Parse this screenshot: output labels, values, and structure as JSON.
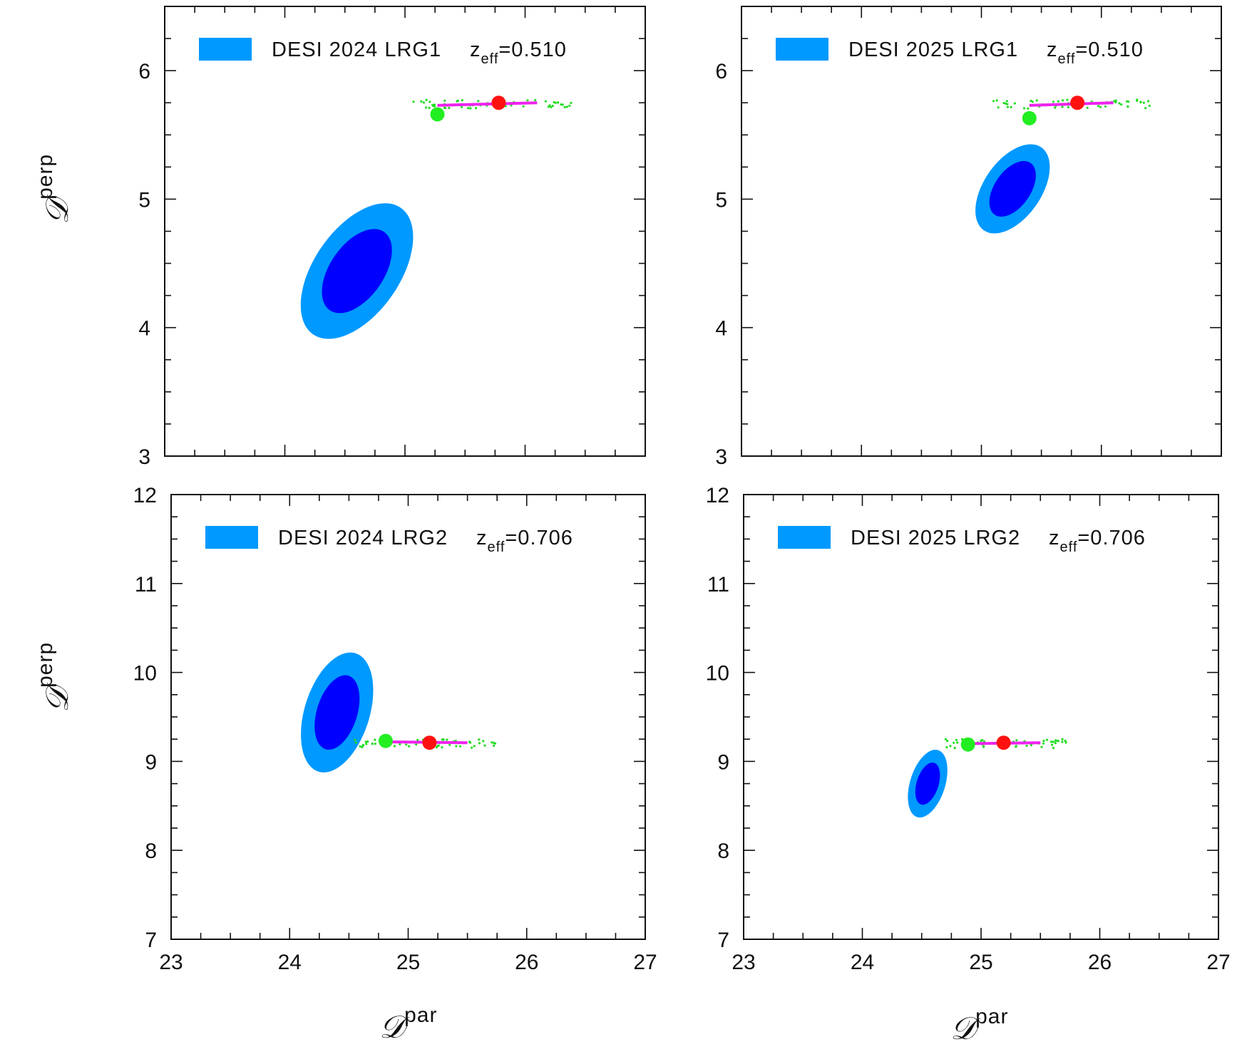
{
  "figure": {
    "xlabel_symbol": "𝒟",
    "xlabel_sup": "par",
    "ylabel_symbol": "𝒟",
    "ylabel_sup": "perp"
  },
  "colors": {
    "outer_contour": "#0099ff",
    "inner_contour": "#0000ff",
    "green_point": "#22ee22",
    "red_point": "#ff1111",
    "magenta_track": "#ee22ee",
    "green_scatter": "#22dd22"
  },
  "chart_data": [
    {
      "type": "contour",
      "panel": "top-left",
      "legend": {
        "label": "DESI 2024 LRG1",
        "z_symbol": "z",
        "z_sub": "eff",
        "z_value": "=0.510"
      },
      "xlim": [
        23,
        27
      ],
      "ylim": [
        3,
        6.5
      ],
      "xticks": [
        23,
        24,
        25,
        26,
        27
      ],
      "yticks": [
        3,
        4,
        5,
        6
      ],
      "xtick_labels_shown": false,
      "contour_2sigma": {
        "center": [
          24.6,
          4.44
        ],
        "sigma_x": 0.5,
        "sigma_y": 0.9,
        "angle_deg": 55.3
      },
      "contour_1sigma": {
        "center": [
          24.6,
          4.44
        ],
        "sigma_x": 0.314,
        "sigma_y": 0.557,
        "angle_deg": 55.3
      },
      "green_point": [
        25.27,
        5.66
      ],
      "red_point": [
        25.78,
        5.75
      ],
      "track": {
        "x_start": 25.27,
        "x_end": 26.1,
        "y_start": 5.73,
        "y_end": 5.75
      },
      "scatter_range": {
        "x_min": 25.07,
        "x_max": 26.42,
        "y": 5.74
      }
    },
    {
      "type": "contour",
      "panel": "top-right",
      "legend": {
        "label": "DESI 2025 LRG1",
        "z_symbol": "z",
        "z_sub": "eff",
        "z_value": "=0.510"
      },
      "xlim": [
        23,
        27
      ],
      "ylim": [
        3,
        6.5
      ],
      "xticks": [
        23,
        24,
        25,
        26,
        27
      ],
      "yticks": [
        3,
        4,
        5,
        6
      ],
      "xtick_labels_shown": false,
      "contour_2sigma": {
        "center": [
          25.26,
          5.08
        ],
        "sigma_x": 0.335,
        "sigma_y": 0.59,
        "angle_deg": 55.3
      },
      "contour_1sigma": {
        "center": [
          25.26,
          5.08
        ],
        "sigma_x": 0.21,
        "sigma_y": 0.368,
        "angle_deg": 55.3
      },
      "green_point": [
        25.4,
        5.63
      ],
      "red_point": [
        25.8,
        5.75
      ],
      "track": {
        "x_start": 25.4,
        "x_end": 26.1,
        "y_start": 5.73,
        "y_end": 5.75
      },
      "scatter_range": {
        "x_min": 25.1,
        "x_max": 26.42,
        "y": 5.74
      }
    },
    {
      "type": "contour",
      "panel": "bottom-left",
      "legend": {
        "label": "DESI 2024 LRG2",
        "z_symbol": "z",
        "z_sub": "eff",
        "z_value": "=0.706"
      },
      "xlim": [
        23,
        27
      ],
      "ylim": [
        7,
        12
      ],
      "xticks": [
        23,
        24,
        25,
        26,
        27
      ],
      "yticks": [
        7,
        8,
        9,
        10,
        11,
        12
      ],
      "xtick_labels_shown": true,
      "contour_2sigma": {
        "center": [
          24.4,
          9.55
        ],
        "sigma_x": 0.38,
        "sigma_y": 0.725,
        "angle_deg": 72.6
      },
      "contour_1sigma": {
        "center": [
          24.4,
          9.55
        ],
        "sigma_x": 0.236,
        "sigma_y": 0.45,
        "angle_deg": 72.6
      },
      "green_point": [
        24.81,
        9.23
      ],
      "red_point": [
        25.18,
        9.21
      ],
      "track": {
        "x_start": 24.81,
        "x_end": 25.5,
        "y_start": 9.22,
        "y_end": 9.21
      },
      "scatter_range": {
        "x_min": 24.55,
        "x_max": 25.75,
        "y": 9.2
      }
    },
    {
      "type": "contour",
      "panel": "bottom-right",
      "legend": {
        "label": "DESI 2025 LRG2",
        "z_symbol": "z",
        "z_sub": "eff",
        "z_value": "=0.706"
      },
      "xlim": [
        23,
        27
      ],
      "ylim": [
        7,
        12
      ],
      "xticks": [
        23,
        24,
        25,
        26,
        27
      ],
      "yticks": [
        7,
        8,
        9,
        10,
        11,
        12
      ],
      "xtick_labels_shown": true,
      "contour_2sigma": {
        "center": [
          24.55,
          8.75
        ],
        "sigma_x": 0.205,
        "sigma_y": 0.41,
        "angle_deg": 72.6
      },
      "contour_1sigma": {
        "center": [
          24.55,
          8.75
        ],
        "sigma_x": 0.128,
        "sigma_y": 0.255,
        "angle_deg": 72.6
      },
      "green_point": [
        24.89,
        9.19
      ],
      "red_point": [
        25.19,
        9.21
      ],
      "track": {
        "x_start": 24.89,
        "x_end": 25.5,
        "y_start": 9.2,
        "y_end": 9.21
      },
      "scatter_range": {
        "x_min": 24.7,
        "x_max": 25.75,
        "y": 9.2
      }
    }
  ]
}
